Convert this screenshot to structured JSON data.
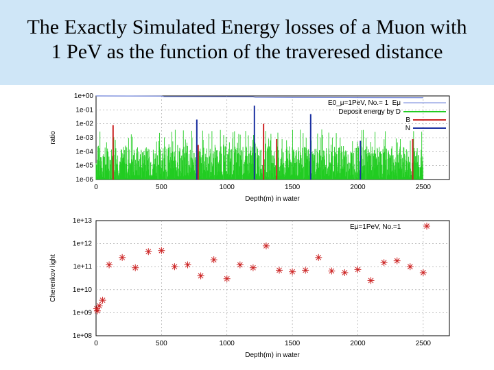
{
  "slide": {
    "title_line1": "The Exactly Simulated Energy losses of a Muon with",
    "title_line2": "1 PeV as the function of the traveresed distance"
  },
  "chart_data": [
    {
      "type": "line",
      "xlabel": "Depth(m) in water",
      "ylabel": "ratio",
      "xlim": [
        0,
        2700
      ],
      "ylim_exp": [
        -6,
        0
      ],
      "xticks": [
        "0",
        "500",
        "1000",
        "1500",
        "2000",
        "2500"
      ],
      "yticks": [
        "1e-06",
        "1e-05",
        "1e-04",
        "1e-03",
        "1e-02",
        "1e-01",
        "1e+00"
      ],
      "legend_title": "E0_μ=1PeV,  No.= 1",
      "legend": [
        {
          "name": "Eμ",
          "color": "#6a7fd8"
        },
        {
          "name": "Deposit energy by D",
          "color": "#22cc22"
        },
        {
          "name": "B",
          "color": "#cc2222"
        },
        {
          "name": "N",
          "color": "#1a2fa0"
        }
      ],
      "series": [
        {
          "name": "Eμ",
          "x": [
            0,
            500,
            520,
            1000,
            1200,
            1220,
            1500,
            2000,
            2500
          ],
          "y": [
            1.0,
            0.97,
            0.9,
            0.88,
            0.86,
            0.8,
            0.78,
            0.76,
            0.74
          ]
        },
        {
          "name": "B",
          "x": [
            130,
            780,
            1280,
            1380,
            2420
          ],
          "y": [
            0.008,
            0.0003,
            0.01,
            0.0008,
            0.0008
          ]
        },
        {
          "name": "N",
          "x": [
            770,
            1210,
            1640,
            2020
          ],
          "y": [
            0.02,
            0.2,
            0.05,
            0.0006
          ]
        }
      ]
    },
    {
      "type": "scatter",
      "xlabel": "Depth(m) in water",
      "ylabel": "Cherenkov light",
      "xlim": [
        0,
        2700
      ],
      "ylim_exp": [
        8,
        13
      ],
      "xticks": [
        "0",
        "500",
        "1000",
        "1500",
        "2000",
        "2500"
      ],
      "yticks": [
        "1e+08",
        "1e+09",
        "1e+10",
        "1e+11",
        "1e+12",
        "1e+13"
      ],
      "legend": [
        {
          "name": "Eμ=1PeV, No.=1",
          "color": "#cc2222"
        }
      ],
      "series": [
        {
          "name": "Eμ=1PeV, No.=1",
          "x": [
            5,
            10,
            25,
            50,
            100,
            200,
            300,
            400,
            500,
            600,
            700,
            800,
            900,
            1000,
            1100,
            1200,
            1300,
            1400,
            1500,
            1600,
            1700,
            1800,
            1900,
            2000,
            2100,
            2200,
            2300,
            2400,
            2500
          ],
          "y": [
            1500000000.0,
            1200000000.0,
            2000000000.0,
            3500000000.0,
            120000000000.0,
            250000000000.0,
            90000000000.0,
            450000000000.0,
            500000000000.0,
            100000000000.0,
            120000000000.0,
            40000000000.0,
            200000000000.0,
            30000000000.0,
            120000000000.0,
            90000000000.0,
            800000000000.0,
            70000000000.0,
            60000000000.0,
            70000000000.0,
            250000000000.0,
            65000000000.0,
            55000000000.0,
            75000000000.0,
            25000000000.0,
            150000000000.0,
            180000000000.0,
            100000000000.0,
            55000000000.0
          ]
        }
      ]
    }
  ]
}
